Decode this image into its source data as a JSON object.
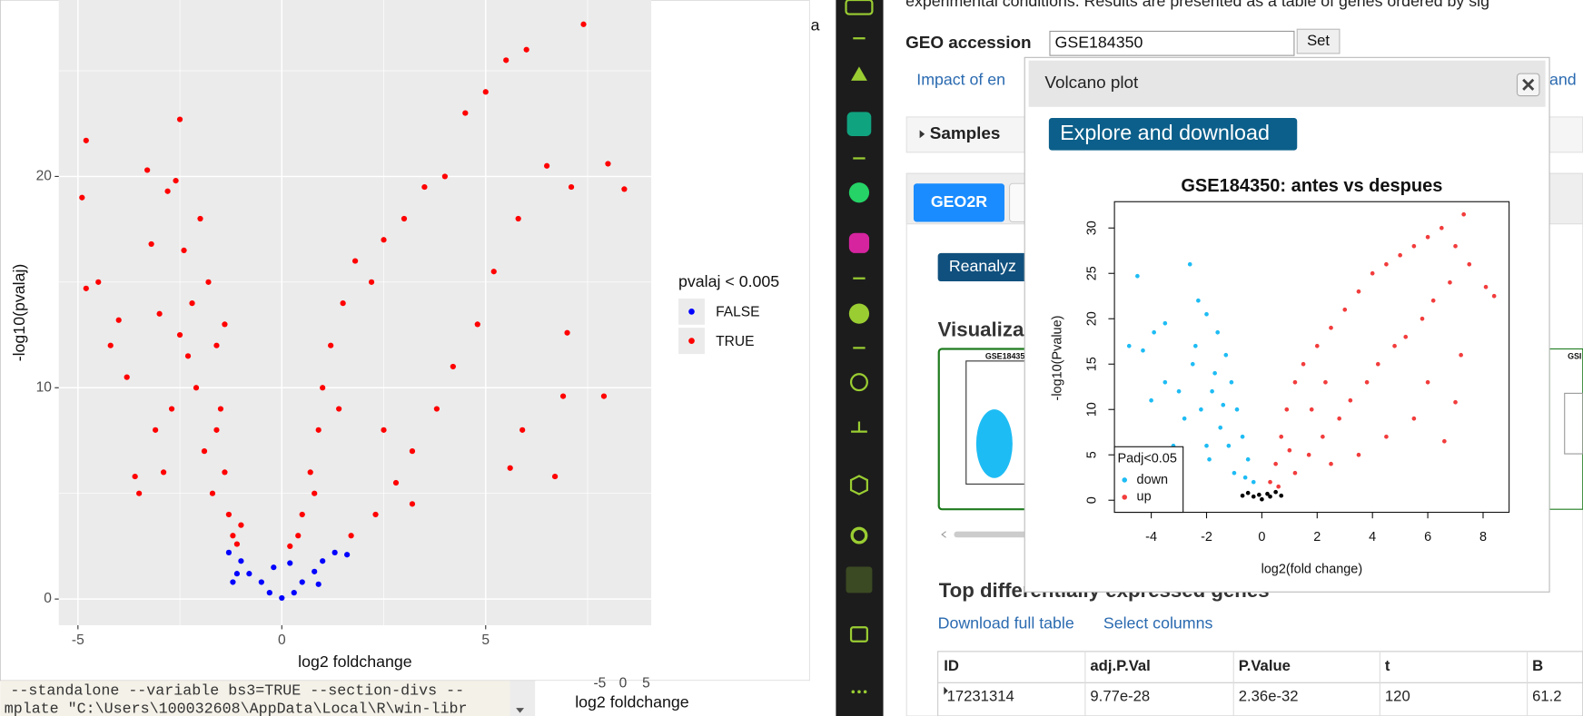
{
  "r_window": {
    "edge_letter": "a",
    "console": [
      "--standalone --variable bs3=TRUE --section-divs --",
      "mplate \"C:\\Users\\100032608\\AppData\\Local\\R\\win-libr"
    ],
    "behind_plot": {
      "ticks": [
        "-5",
        "0",
        "5"
      ],
      "xlabel": "log2 foldchange"
    }
  },
  "geo": {
    "intro": "experimental conditions. Results are presented as a table of genes ordered by sig",
    "accession_label": "GEO accession",
    "accession_value": "GSE184350",
    "set_button": "Set",
    "title_link_start": "Impact of en",
    "title_link_end": "and",
    "samples": "Samples",
    "tab": "GEO2R",
    "reanalyze": "Reanalyz",
    "visualize": "Visualiza",
    "thumb_title": "GSE18435",
    "thumb_title_right": "GSI",
    "top_genes": "Top differentially expressed genes",
    "download": "Download full table",
    "select_columns": "Select columns",
    "table": {
      "columns": [
        "ID",
        "adj.P.Val",
        "P.Value",
        "t",
        "B"
      ],
      "rows": [
        [
          "17231314",
          "9.77e-28",
          "2.36e-32",
          "120",
          "61.2"
        ]
      ]
    }
  },
  "modal": {
    "title": "Volcano plot",
    "button": "Explore and download"
  },
  "chart_data": [
    {
      "type": "scatter",
      "xlabel": "log2 foldchange",
      "ylabel": "-log10(pvalaj)",
      "legend_title": "pvalaj < 0.005",
      "xlim": [
        -5.47,
        9.06
      ],
      "ylim": [
        -1.24,
        28.35
      ],
      "xticks": [
        -5,
        0,
        5
      ],
      "yticks": [
        0,
        10,
        20
      ],
      "minor_xticks": [
        -2.5,
        2.5,
        7.5
      ],
      "minor_yticks": [
        5,
        15,
        25
      ],
      "grid": true,
      "series": [
        {
          "name": "FALSE",
          "color": "#0000ff",
          "x": [
            -1.3,
            -1,
            -0.8,
            -0.5,
            -0.3,
            0,
            0.3,
            0.5,
            0.8,
            1,
            1.3,
            1.6,
            -1.2,
            -1.1,
            0.9,
            -0.2,
            0.2
          ],
          "values": [
            2.2,
            1.8,
            1.2,
            0.8,
            0.3,
            0.05,
            0.3,
            0.8,
            1.3,
            1.8,
            2.2,
            2.1,
            0.8,
            1.2,
            0.7,
            1.5,
            1.7
          ]
        },
        {
          "name": "TRUE",
          "color": "#ff0000",
          "x": [
            -4.8,
            -4.9,
            -4.8,
            -4.5,
            -4.2,
            -4,
            -3.8,
            -3.6,
            -3.5,
            -3.3,
            -3.2,
            -3,
            -2.9,
            -2.8,
            -2.5,
            -2.6,
            -2.4,
            -2.2,
            -2,
            -1.8,
            -1.6,
            -1.5,
            -1.4,
            -1.3,
            -1.2,
            -2.1,
            -1.9,
            -1.7,
            -2.3,
            -2.7,
            -1.1,
            -1.4,
            -1.6,
            -1,
            -2.5,
            -3.1,
            0.2,
            0.5,
            0.7,
            0.9,
            1,
            1.2,
            1.5,
            1.8,
            2.2,
            2.5,
            3,
            3.5,
            4,
            4.5,
            5,
            5.5,
            6,
            7.4,
            7.1,
            8,
            8.4,
            6.5,
            5.8,
            5.2,
            4.8,
            4.2,
            3.8,
            3.2,
            2.8,
            2.3,
            1.7,
            7,
            6.9,
            7.9,
            6.7,
            5.6,
            5.9,
            3.2,
            2.5,
            1.4,
            0.8,
            0.4
          ],
          "values": [
            21.7,
            19,
            14.7,
            15,
            12,
            13.2,
            10.5,
            5.8,
            5,
            20.3,
            16.8,
            13.5,
            6,
            19.3,
            22.7,
            19.8,
            16.5,
            14,
            18,
            15,
            12,
            9,
            6,
            4,
            3,
            10,
            7,
            5,
            11.5,
            9,
            2.6,
            13,
            8,
            3.5,
            12.5,
            8,
            2.5,
            4,
            6,
            8,
            10,
            12,
            14,
            16,
            15,
            17,
            18,
            19.5,
            20,
            23,
            24,
            25.5,
            26,
            27.2,
            19.5,
            20.6,
            19.4,
            20.5,
            18,
            15.5,
            13,
            11,
            9,
            7,
            5.5,
            4,
            3,
            12.6,
            9.6,
            9.6,
            5.8,
            6.2,
            8,
            4.5,
            8,
            9,
            5,
            3
          ]
        }
      ]
    },
    {
      "type": "scatter",
      "title": "GSE184350: antes vs despues",
      "xlabel": "log2(fold change)",
      "ylabel": "-log10(Pvalue)",
      "legend_title": "Padj<0.05",
      "xlim": [
        -5.33,
        8.94
      ],
      "ylim": [
        -1.33,
        32.9
      ],
      "xticks": [
        -4,
        -2,
        0,
        2,
        4,
        6,
        8
      ],
      "yticks": [
        0,
        5,
        10,
        15,
        20,
        25,
        30
      ],
      "grid": false,
      "series": [
        {
          "color": "#000000",
          "x": [
            -0.5,
            -0.3,
            0,
            0.3,
            0.5,
            -0.1,
            0.2,
            0.7,
            -0.7
          ],
          "values": [
            0.8,
            0.4,
            0.1,
            0.4,
            0.9,
            0.6,
            0.7,
            0.5,
            0.5
          ]
        },
        {
          "name": "down",
          "color": "#1ebcf4",
          "x": [
            -4.5,
            -4.8,
            -4.3,
            -3.9,
            -3.5,
            -2.6,
            -2.3,
            -2,
            -1.6,
            -1.3,
            -1.1,
            -0.9,
            -0.7,
            -0.5,
            -0.3,
            -2.5,
            -3,
            -3.5,
            -2.2,
            -1.8,
            -1.5,
            -1.2,
            -2,
            -2.8,
            -4,
            -3.2,
            -1,
            -1.7,
            -1.4,
            -2.4,
            -0.6,
            -1.9
          ],
          "values": [
            24.7,
            17,
            16.5,
            18.5,
            19.5,
            26,
            22,
            20.5,
            18.5,
            16,
            13,
            10,
            7,
            4.5,
            2,
            15,
            12,
            13,
            10,
            12,
            8,
            6,
            6,
            9,
            11,
            6,
            3,
            14,
            10.5,
            17,
            2.5,
            4.5
          ]
        },
        {
          "name": "up",
          "color": "#f23c3c",
          "x": [
            0.3,
            0.5,
            0.7,
            0.9,
            1.2,
            1.5,
            2,
            2.5,
            3,
            3.5,
            4,
            4.5,
            5,
            5.5,
            6,
            7.3,
            6.5,
            7,
            8.1,
            8.4,
            7.5,
            6.8,
            6.2,
            5.8,
            5.2,
            4.8,
            4.2,
            3.8,
            3.2,
            2.8,
            2.2,
            1.7,
            1.2,
            7,
            6.6,
            5.5,
            4.5,
            3.5,
            2.5,
            6,
            7.2,
            1,
            1.8,
            2.3,
            0.6
          ],
          "values": [
            2,
            4,
            7,
            10,
            13,
            15,
            17,
            19,
            21,
            23,
            25,
            26,
            27,
            28,
            29,
            31.5,
            30,
            28,
            23.5,
            22.5,
            26,
            24,
            22,
            20,
            18,
            17,
            15,
            13,
            11,
            9,
            7,
            5,
            3,
            10.8,
            6.5,
            9,
            7,
            5,
            4,
            13,
            16,
            5.5,
            10,
            13,
            1.5
          ]
        }
      ]
    }
  ]
}
